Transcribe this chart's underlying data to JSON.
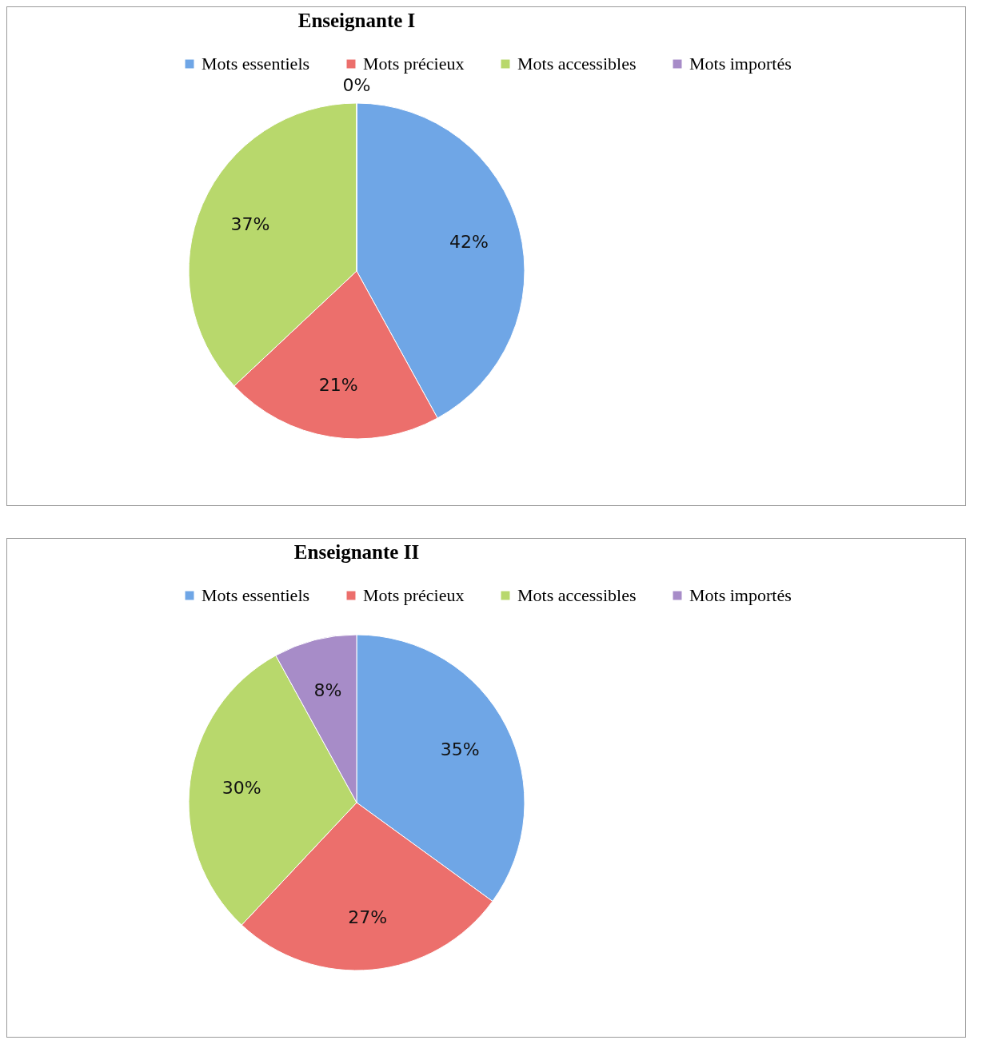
{
  "chart_data": [
    {
      "type": "pie",
      "title": "Enseignante I",
      "categories": [
        "Mots essentiels",
        "Mots précieux",
        "Mots accessibles",
        "Mots importés"
      ],
      "values": [
        42,
        21,
        37,
        0
      ],
      "value_labels": [
        "42%",
        "21%",
        "37%",
        "0%"
      ],
      "colors": [
        "#6fa6e6",
        "#ec6f6c",
        "#b8d86c",
        "#a78cc8"
      ],
      "legend": "top"
    },
    {
      "type": "pie",
      "title": "Enseignante II",
      "categories": [
        "Mots essentiels",
        "Mots précieux",
        "Mots accessibles",
        "Mots importés"
      ],
      "values": [
        35,
        27,
        30,
        8
      ],
      "value_labels": [
        "35%",
        "27%",
        "30%",
        "8%"
      ],
      "colors": [
        "#6fa6e6",
        "#ec6f6c",
        "#b8d86c",
        "#a78cc8"
      ],
      "legend": "top"
    }
  ]
}
